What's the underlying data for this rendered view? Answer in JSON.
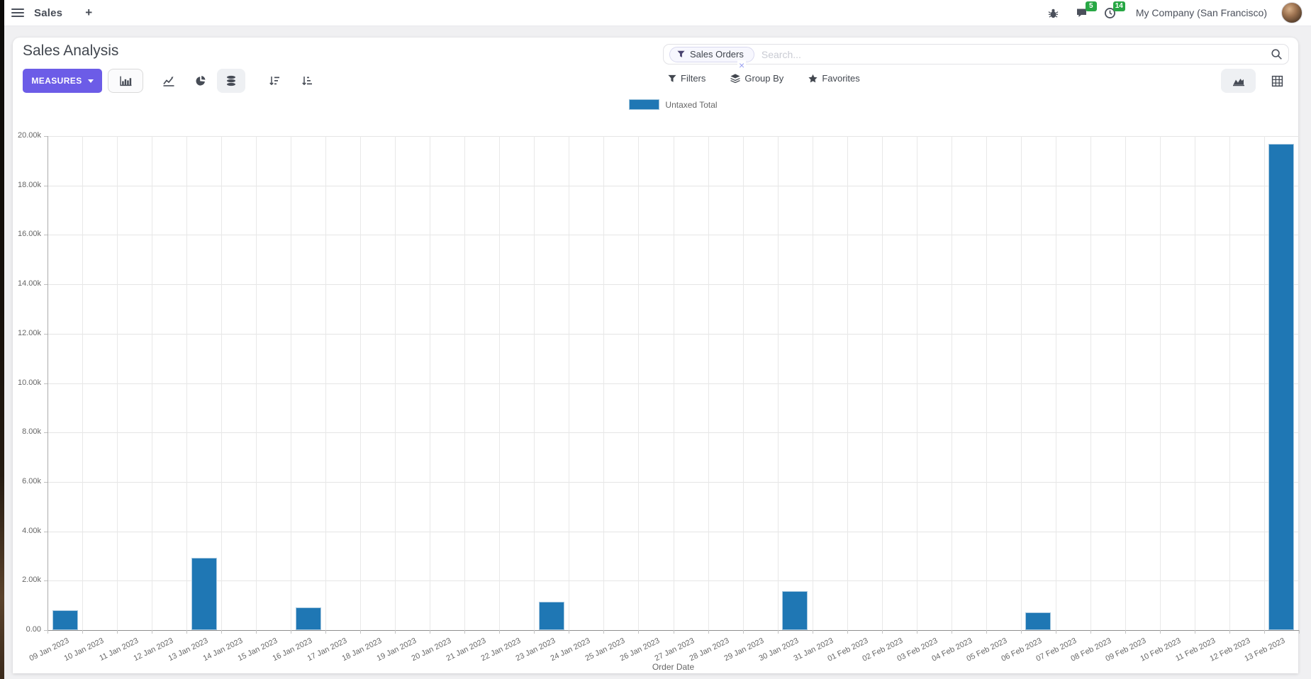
{
  "navbar": {
    "app_name": "Sales",
    "plus_label": "+",
    "message_count": "5",
    "activity_count": "14",
    "company": "My Company (San Francisco)"
  },
  "control_panel": {
    "title": "Sales Analysis",
    "measures_label": "MEASURES",
    "search": {
      "facet": "Sales Orders",
      "remove_glyph": "×",
      "placeholder": "Search..."
    },
    "filters_label": "Filters",
    "groupby_label": "Group By",
    "favorites_label": "Favorites"
  },
  "icons": {
    "menu": "hamburger",
    "bug": "debug",
    "chat": "messages",
    "clock": "activities",
    "funnel": "filter",
    "layers": "group-by",
    "star": "favorites",
    "magnifier": "search",
    "bar": "bar-chart-view",
    "line": "line-chart-view",
    "pie": "pie-chart-view",
    "database": "stacked-toggle",
    "sort-desc": "sort-descending",
    "sort-asc": "sort-ascending",
    "area": "graph-view-switch",
    "grid": "pivot-view-switch"
  },
  "colors": {
    "accent": "#6c5ce7",
    "bar": "#1f77b4",
    "badge": "#28a745",
    "page_bg": "#f0f0f2"
  },
  "chart_data": {
    "type": "bar",
    "title": "",
    "xlabel": "Order Date",
    "ylabel": "",
    "ylim": [
      0,
      20000
    ],
    "ytick_step": 2000,
    "grid": true,
    "legend_position": "top-center",
    "ytick_labels": [
      "0.00",
      "2.00k",
      "4.00k",
      "6.00k",
      "8.00k",
      "10.00k",
      "12.00k",
      "14.00k",
      "16.00k",
      "18.00k",
      "20.00k"
    ],
    "categories": [
      "09 Jan 2023",
      "10 Jan 2023",
      "11 Jan 2023",
      "12 Jan 2023",
      "13 Jan 2023",
      "14 Jan 2023",
      "15 Jan 2023",
      "16 Jan 2023",
      "17 Jan 2023",
      "18 Jan 2023",
      "19 Jan 2023",
      "20 Jan 2023",
      "21 Jan 2023",
      "22 Jan 2023",
      "23 Jan 2023",
      "24 Jan 2023",
      "25 Jan 2023",
      "26 Jan 2023",
      "27 Jan 2023",
      "28 Jan 2023",
      "29 Jan 2023",
      "30 Jan 2023",
      "31 Jan 2023",
      "01 Feb 2023",
      "02 Feb 2023",
      "03 Feb 2023",
      "04 Feb 2023",
      "05 Feb 2023",
      "06 Feb 2023",
      "07 Feb 2023",
      "08 Feb 2023",
      "09 Feb 2023",
      "10 Feb 2023",
      "11 Feb 2023",
      "12 Feb 2023",
      "13 Feb 2023"
    ],
    "series": [
      {
        "name": "Untaxed Total",
        "color": "#1f77b4",
        "values": [
          800,
          0,
          0,
          0,
          2940,
          0,
          0,
          920,
          0,
          0,
          0,
          0,
          0,
          0,
          1140,
          0,
          0,
          0,
          0,
          0,
          0,
          1580,
          0,
          0,
          0,
          0,
          0,
          0,
          720,
          0,
          0,
          0,
          0,
          0,
          0,
          19680
        ]
      }
    ]
  }
}
